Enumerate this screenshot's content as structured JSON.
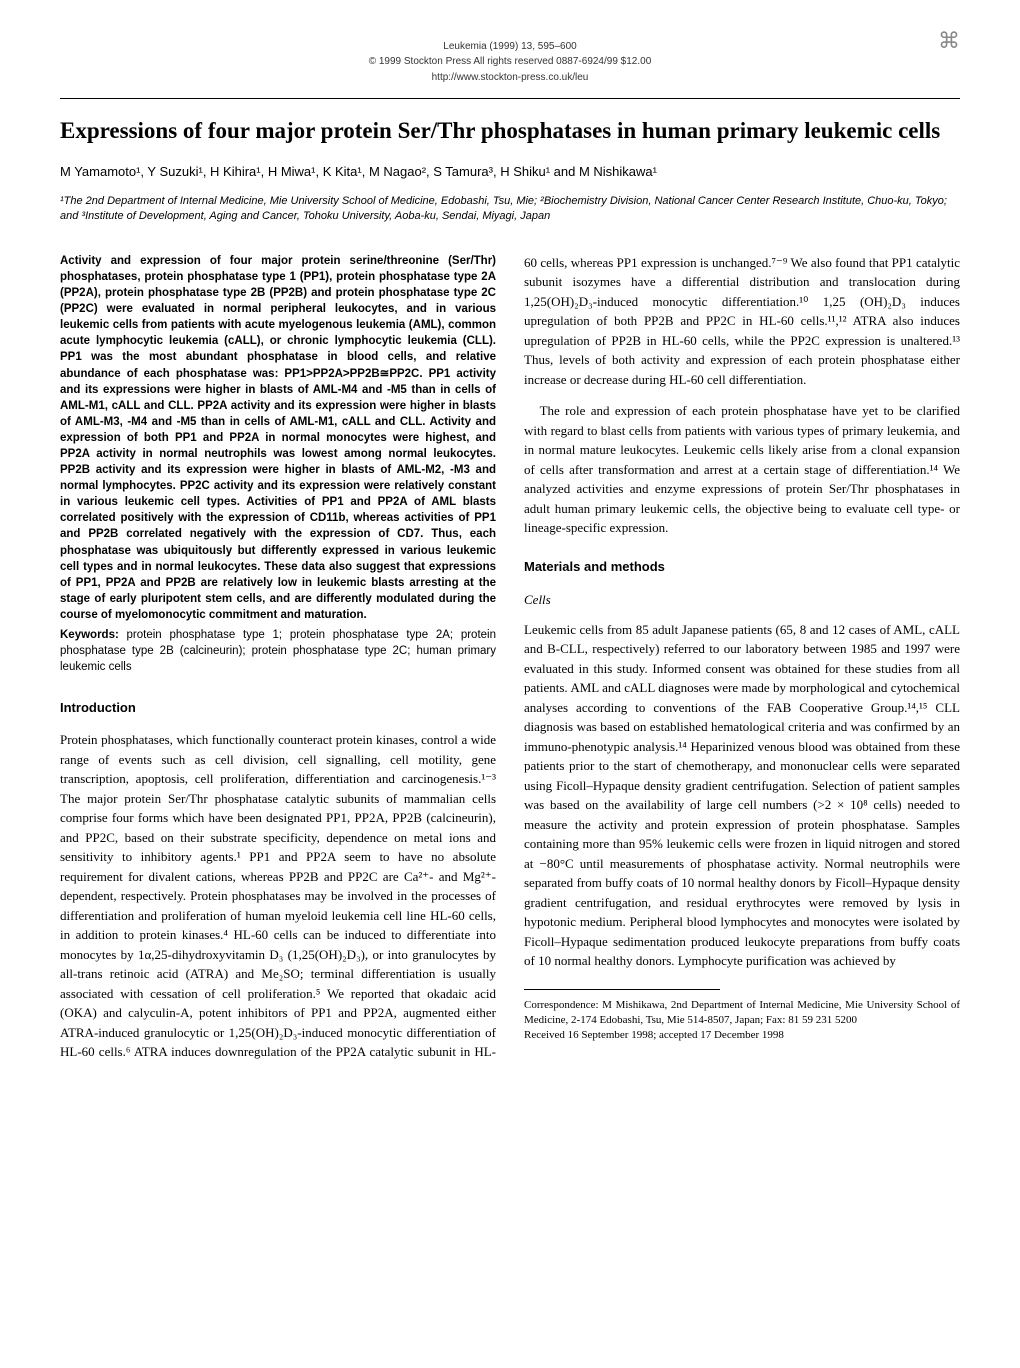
{
  "header": {
    "journal_line": "Leukemia (1999) 13, 595–600",
    "copyright_line": "© 1999 Stockton Press  All rights reserved 0887-6924/99 $12.00",
    "url_line": "http://www.stockton-press.co.uk/leu",
    "logo_glyph": "⌘"
  },
  "title": "Expressions of four major protein Ser/Thr phosphatases in human primary leukemic cells",
  "authors": "M Yamamoto¹, Y Suzuki¹, H Kihira¹, H Miwa¹, K Kita¹, M Nagao², S Tamura³, H Shiku¹ and M Nishikawa¹",
  "affiliations": "¹The 2nd Department of Internal Medicine, Mie University School of Medicine, Edobashi, Tsu, Mie; ²Biochemistry Division, National Cancer Center Research Institute, Chuo-ku, Tokyo; and ³Institute of Development, Aging and Cancer, Tohoku University, Aoba-ku, Sendai, Miyagi, Japan",
  "abstract": "Activity and expression of four major protein serine/threonine (Ser/Thr) phosphatases, protein phosphatase type 1 (PP1), protein phosphatase type 2A (PP2A), protein phosphatase type 2B (PP2B) and protein phosphatase type 2C (PP2C) were evaluated in normal peripheral leukocytes, and in various leukemic cells from patients with acute myelogenous leukemia (AML), common acute lymphocytic leukemia (cALL), or chronic lymphocytic leukemia (CLL). PP1 was the most abundant phosphatase in blood cells, and relative abundance of each phosphatase was: PP1>PP2A>PP2B≅PP2C. PP1 activity and its expressions were higher in blasts of AML-M4 and -M5 than in cells of AML-M1, cALL and CLL. PP2A activity and its expression were higher in blasts of AML-M3, -M4 and -M5 than in cells of AML-M1, cALL and CLL. Activity and expression of both PP1 and PP2A in normal monocytes were highest, and PP2A activity in normal neutrophils was lowest among normal leukocytes. PP2B activity and its expression were higher in blasts of AML-M2, -M3 and normal lymphocytes. PP2C activity and its expression were relatively constant in various leukemic cell types. Activities of PP1 and PP2A of AML blasts correlated positively with the expression of CD11b, whereas activities of PP1 and PP2B correlated negatively with the expression of CD7. Thus, each phosphatase was ubiquitously but differently expressed in various leukemic cell types and in normal leukocytes. These data also suggest that expressions of PP1, PP2A and PP2B are relatively low in leukemic blasts arresting at the stage of early pluripotent stem cells, and are differently modulated during the course of myelomonocytic commitment and maturation.",
  "keywords_label": "Keywords:",
  "keywords": " protein phosphatase type 1; protein phosphatase type 2A; protein phosphatase type 2B (calcineurin); protein phosphatase type 2C; human primary leukemic cells",
  "sections": {
    "introduction_heading": "Introduction",
    "introduction_p1": "Protein phosphatases, which functionally counteract protein kinases, control a wide range of events such as cell division, cell signalling, cell motility, gene transcription, apoptosis, cell proliferation, differentiation and carcinogenesis.¹⁻³ The major protein Ser/Thr phosphatase catalytic subunits of mammalian cells comprise four forms which have been designated PP1, PP2A, PP2B (calcineurin), and PP2C, based on their substrate specificity, dependence on metal ions and sensitivity to inhibitory agents.¹ PP1 and PP2A seem to have no absolute requirement for divalent cations, whereas PP2B and PP2C are Ca²⁺- and Mg²⁺-dependent, respectively. Protein phosphatases may be involved in the processes of differentiation and proliferation of human myeloid leukemia cell line HL-60 cells, in addition to protein kinases.⁴ HL-60 cells can be induced to differentiate into monocytes by 1α,25-dihydroxyvitamin D₃ (1,25(OH)₂D₃), or into granulocytes by all-trans retinoic acid (ATRA) and Me₂SO; terminal differentiation is usually associated with cessation of cell proliferation.⁵ We reported that okadaic acid (OKA) and calyculin-A, potent inhibitors of PP1 and PP2A, augmented either ATRA-induced granulocytic or 1,25(OH)₂D₃-induced monocytic differentiation of HL-60 cells.⁶ ATRA induces downregulation of the PP2A catalytic subunit in HL-60 cells, whereas PP1 expression is unchanged.⁷⁻⁹ We also found that PP1 catalytic subunit isozymes have a differential distribution and translocation during 1,25(OH)₂D₃-induced monocytic differentiation.¹⁰ 1,25 (OH)₂D₃ induces upregulation of both PP2B and PP2C in HL-60 cells.¹¹,¹² ATRA also induces upregulation of PP2B in HL-60 cells, while the PP2C expression is unaltered.¹³ Thus, levels of both activity and expression of each protein phosphatase either increase or decrease during HL-60 cell differentiation.",
    "introduction_p2": "The role and expression of each protein phosphatase have yet to be clarified with regard to blast cells from patients with various types of primary leukemia, and in normal mature leukocytes. Leukemic cells likely arise from a clonal expansion of cells after transformation and arrest at a certain stage of differentiation.¹⁴ We analyzed activities and enzyme expressions of protein Ser/Thr phosphatases in adult human primary leukemic cells, the objective being to evaluate cell type- or lineage-specific expression.",
    "materials_heading": "Materials and methods",
    "cells_subheading": "Cells",
    "cells_p1": "Leukemic cells from 85 adult Japanese patients (65, 8 and 12 cases of AML, cALL and B-CLL, respectively) referred to our laboratory between 1985 and 1997 were evaluated in this study. Informed consent was obtained for these studies from all patients. AML and cALL diagnoses were made by morphological and cytochemical analyses according to conventions of the FAB Cooperative Group.¹⁴,¹⁵ CLL diagnosis was based on established hematological criteria and was confirmed by an immuno-phenotypic analysis.¹⁴ Heparinized venous blood was obtained from these patients prior to the start of chemotherapy, and mononuclear cells were separated using Ficoll–Hypaque density gradient centrifugation. Selection of patient samples was based on the availability of large cell numbers (>2 × 10⁸ cells) needed to measure the activity and protein expression of protein phosphatase. Samples containing more than 95% leukemic cells were frozen in liquid nitrogen and stored at −80°C until measurements of phosphatase activity. Normal neutrophils were separated from buffy coats of 10 normal healthy donors by Ficoll–Hypaque density gradient centrifugation, and residual erythrocytes were removed by lysis in hypotonic medium. Peripheral blood lymphocytes and monocytes were isolated by Ficoll–Hypaque sedimentation produced leukocyte preparations from buffy coats of 10 normal healthy donors. Lymphocyte purification was achieved by"
  },
  "correspondence": {
    "line1": "Correspondence: M Mishikawa, 2nd Department of Internal Medicine, Mie University School of Medicine, 2-174 Edobashi, Tsu, Mie 514-8507, Japan; Fax: 81 59 231 5200",
    "line2": "Received 16 September 1998; accepted 17 December 1998"
  }
}
